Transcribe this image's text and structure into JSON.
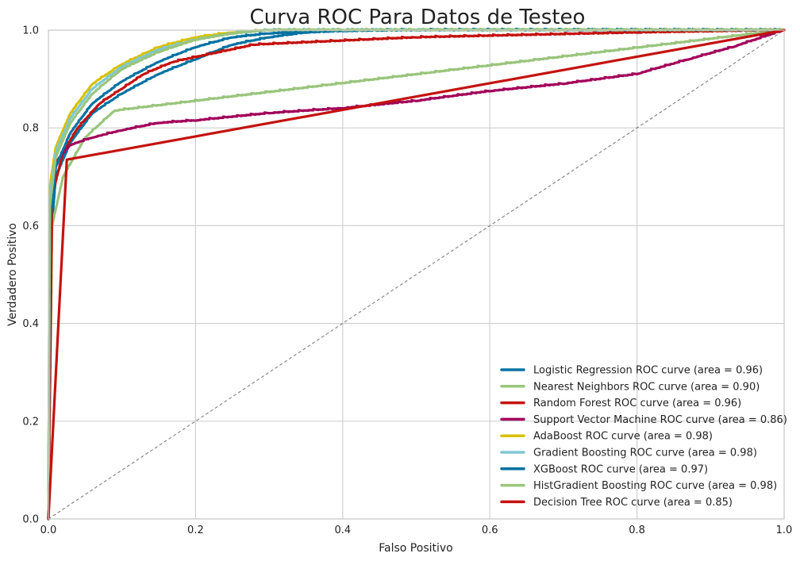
{
  "chart_data": {
    "type": "line",
    "title": "Curva ROC Para Datos de Testeo",
    "xlabel": "Falso Positivo",
    "ylabel": "Verdadero Positivo",
    "xlim": [
      0,
      1
    ],
    "ylim": [
      0,
      1
    ],
    "xticks": [
      "0.0",
      "0.2",
      "0.4",
      "0.6",
      "0.8",
      "1.0"
    ],
    "yticks": [
      "0.0",
      "0.2",
      "0.4",
      "0.6",
      "0.8",
      "1.0"
    ],
    "grid": true,
    "legend_position": "lower-right",
    "diagonal": {
      "x": [
        0,
        1
      ],
      "y": [
        0,
        1
      ],
      "color": "#808080",
      "style": "dashed"
    },
    "series": [
      {
        "name": "Logistic Regression ROC curve (area = 0.96)",
        "color": "#0072a2",
        "x": [
          0,
          0.002,
          0.01,
          0.03,
          0.06,
          0.1,
          0.15,
          0.2,
          0.25,
          0.3,
          0.35,
          0.4,
          0.5,
          0.7,
          1.0
        ],
        "y": [
          0,
          0.55,
          0.7,
          0.77,
          0.83,
          0.87,
          0.91,
          0.94,
          0.97,
          0.985,
          0.995,
          0.998,
          1.0,
          1.0,
          1.0
        ]
      },
      {
        "name": "Nearest Neighbors ROC curve (area = 0.90)",
        "color": "#99c57c",
        "x": [
          0,
          0.005,
          0.02,
          0.05,
          0.09,
          1.0
        ],
        "y": [
          0,
          0.6,
          0.7,
          0.78,
          0.835,
          1.0
        ]
      },
      {
        "name": "Random Forest ROC curve (area = 0.96)",
        "color": "#c4120e",
        "x": [
          0,
          0.005,
          0.02,
          0.04,
          0.07,
          0.1,
          0.13,
          0.17,
          0.28,
          0.5,
          0.8,
          1.0
        ],
        "y": [
          0,
          0.66,
          0.75,
          0.8,
          0.85,
          0.88,
          0.91,
          0.935,
          0.97,
          0.985,
          0.995,
          1.0
        ]
      },
      {
        "name": "Support Vector Machine ROC curve (area = 0.86)",
        "color": "#a2005a",
        "x": [
          0,
          0.003,
          0.01,
          0.03,
          0.06,
          0.1,
          0.15,
          0.2,
          0.3,
          0.4,
          0.5,
          0.6,
          0.7,
          0.8,
          0.87,
          0.93,
          1.0
        ],
        "y": [
          0,
          0.62,
          0.73,
          0.765,
          0.78,
          0.795,
          0.81,
          0.815,
          0.83,
          0.84,
          0.855,
          0.875,
          0.89,
          0.91,
          0.94,
          0.965,
          1.0
        ]
      },
      {
        "name": "AdaBoost ROC curve (area = 0.98)",
        "color": "#d8c100",
        "x": [
          0,
          0.002,
          0.01,
          0.03,
          0.06,
          0.1,
          0.15,
          0.2,
          0.25,
          0.3,
          0.4,
          1.0
        ],
        "y": [
          0,
          0.68,
          0.76,
          0.83,
          0.89,
          0.93,
          0.965,
          0.985,
          0.995,
          1.0,
          1.0,
          1.0
        ]
      },
      {
        "name": "Gradient Boosting ROC curve (area = 0.98)",
        "color": "#7fc8d2",
        "x": [
          0,
          0.002,
          0.01,
          0.03,
          0.06,
          0.1,
          0.15,
          0.2,
          0.25,
          0.3,
          0.4,
          1.0
        ],
        "y": [
          0,
          0.66,
          0.75,
          0.82,
          0.88,
          0.925,
          0.96,
          0.98,
          0.993,
          1.0,
          1.0,
          1.0
        ]
      },
      {
        "name": "XGBoost ROC curve (area = 0.97)",
        "color": "#0072a2",
        "x": [
          0,
          0.002,
          0.01,
          0.03,
          0.06,
          0.1,
          0.15,
          0.2,
          0.25,
          0.3,
          0.35,
          0.4,
          0.5,
          1.0
        ],
        "y": [
          0,
          0.6,
          0.72,
          0.79,
          0.85,
          0.895,
          0.935,
          0.965,
          0.985,
          0.993,
          0.997,
          0.999,
          1.0,
          1.0
        ]
      },
      {
        "name": "HistGradient Boosting ROC curve (area = 0.98)",
        "color": "#99c57c",
        "x": [
          0,
          0.002,
          0.01,
          0.03,
          0.06,
          0.1,
          0.15,
          0.2,
          0.25,
          0.3,
          0.4,
          1.0
        ],
        "y": [
          0,
          0.64,
          0.74,
          0.81,
          0.87,
          0.92,
          0.955,
          0.98,
          0.993,
          1.0,
          1.0,
          1.0
        ]
      },
      {
        "name": "Decision Tree ROC curve (area = 0.85)",
        "color": "#c4120e",
        "x": [
          0,
          0.025,
          1.0
        ],
        "y": [
          0,
          0.735,
          1.0
        ]
      }
    ]
  }
}
